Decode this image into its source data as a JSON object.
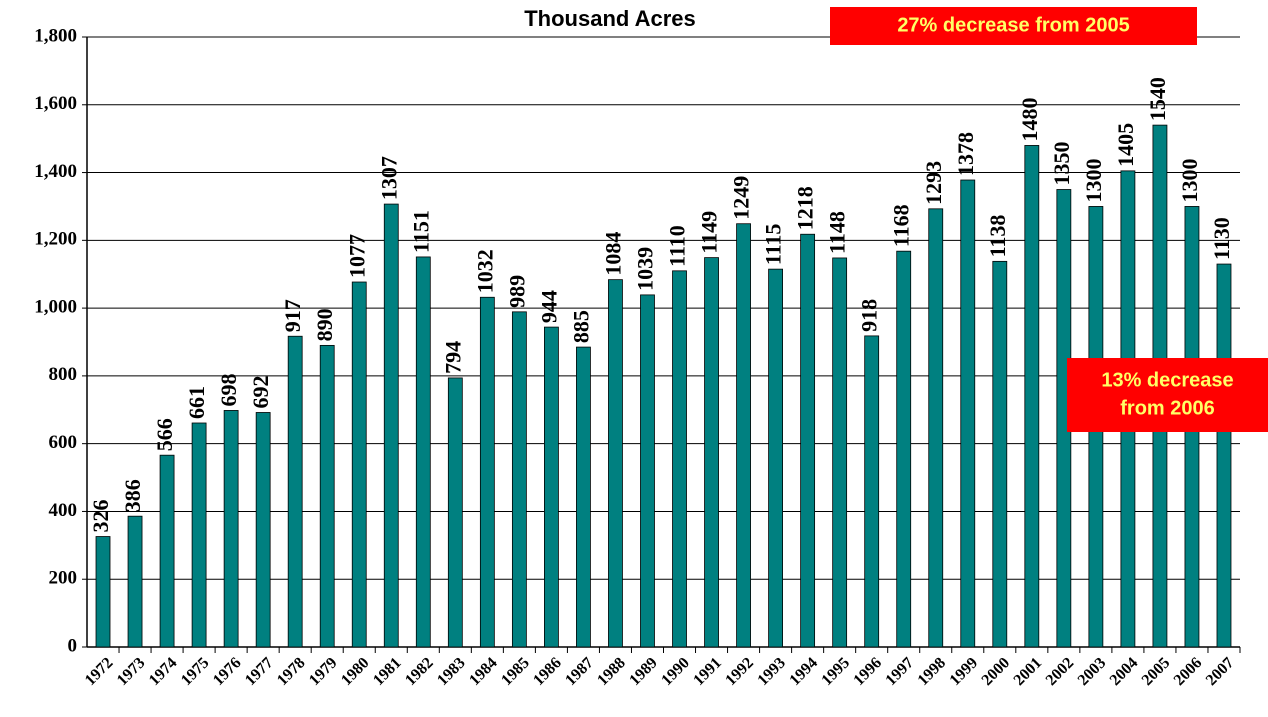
{
  "chart_data": {
    "type": "bar",
    "title": "Thousand Acres",
    "categories": [
      "1972",
      "1973",
      "1974",
      "1975",
      "1976",
      "1977",
      "1978",
      "1979",
      "1980",
      "1981",
      "1982",
      "1983",
      "1984",
      "1985",
      "1986",
      "1987",
      "1988",
      "1989",
      "1990",
      "1991",
      "1992",
      "1993",
      "1994",
      "1995",
      "1996",
      "1997",
      "1998",
      "1999",
      "2000",
      "2001",
      "2002",
      "2003",
      "2004",
      "2005",
      "2006",
      "2007"
    ],
    "values": [
      326,
      386,
      566,
      661,
      698,
      692,
      917,
      890,
      1077,
      1307,
      1151,
      794,
      1032,
      989,
      944,
      885,
      1084,
      1039,
      1110,
      1149,
      1249,
      1115,
      1218,
      1148,
      918,
      1168,
      1293,
      1378,
      1138,
      1480,
      1350,
      1300,
      1405,
      1540,
      1300,
      1130
    ],
    "color": "#008080",
    "ylim": [
      0,
      1800
    ],
    "yticks": [
      0,
      200,
      400,
      600,
      800,
      {
        "value": 1000,
        "label": "1,000"
      },
      {
        "value": 1200,
        "label": "1,200"
      },
      {
        "value": 1400,
        "label": "1,400"
      },
      {
        "value": 1600,
        "label": "1,600"
      },
      {
        "value": 1800,
        "label": "1,800"
      }
    ],
    "grid": true,
    "annotations": [
      [
        "27% decrease from 2005"
      ],
      [
        "13% decrease",
        "from 2006"
      ]
    ]
  }
}
